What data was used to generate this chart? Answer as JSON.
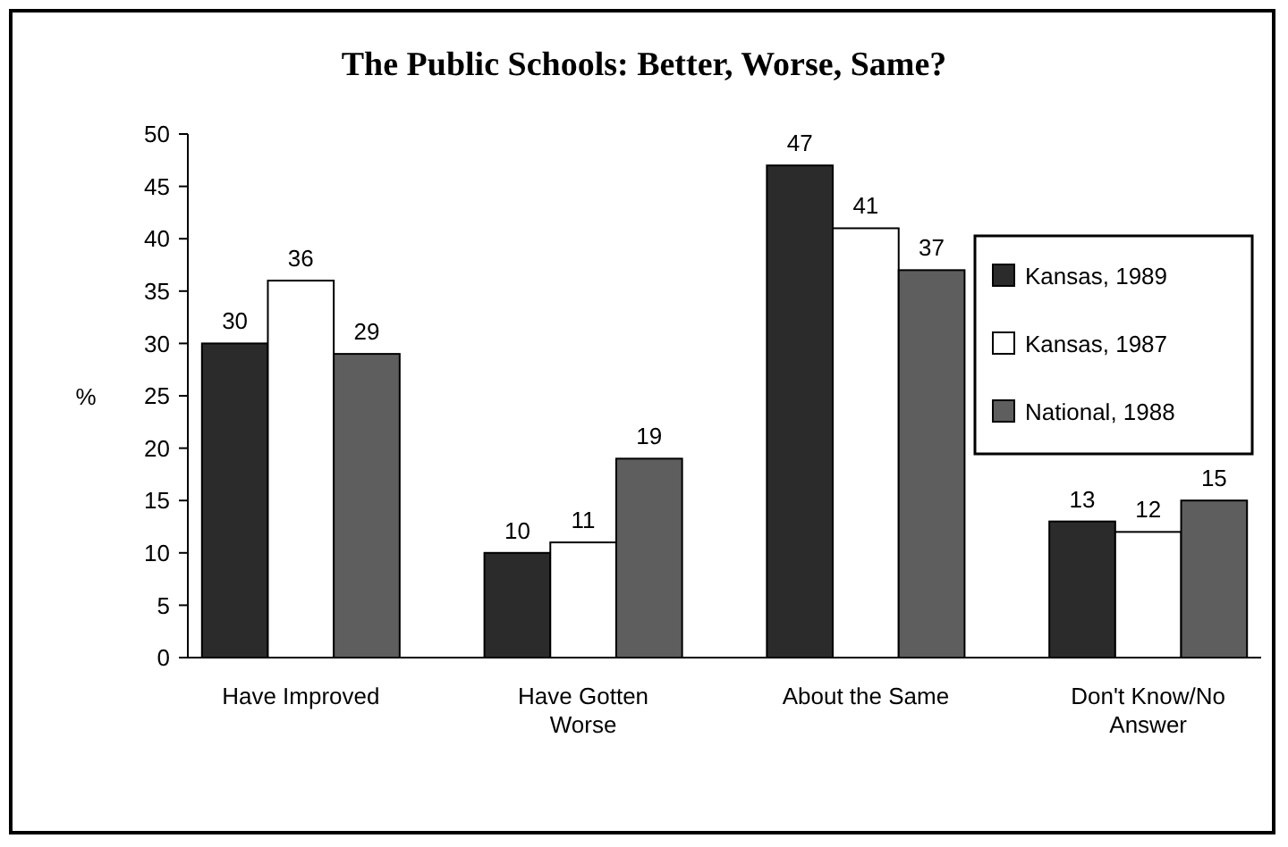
{
  "chart_data": {
    "type": "bar",
    "title": "The Public Schools: Better, Worse, Same?",
    "ylabel": "%",
    "categories": [
      "Have Improved",
      "Have Gotten Worse",
      "About the Same",
      "Don't Know/No Answer"
    ],
    "series": [
      {
        "name": "Kansas, 1989",
        "color": "#2b2b2b",
        "values": [
          30,
          10,
          47,
          13
        ]
      },
      {
        "name": "Kansas, 1987",
        "color": "#ffffff",
        "values": [
          36,
          11,
          41,
          12
        ]
      },
      {
        "name": "National, 1988",
        "color": "#5e5e5e",
        "values": [
          29,
          19,
          37,
          15
        ]
      }
    ],
    "ylim": [
      0,
      50
    ],
    "yticks": [
      0,
      5,
      10,
      15,
      20,
      25,
      30,
      35,
      40,
      45,
      50
    ],
    "data_labels": true,
    "legend": "top right",
    "grid": false
  }
}
